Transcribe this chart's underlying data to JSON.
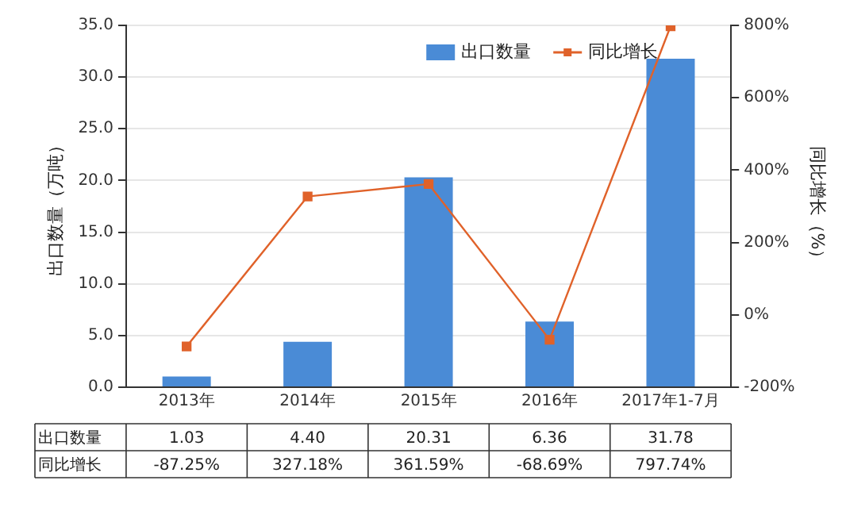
{
  "chart_data": {
    "type": "bar",
    "categories": [
      "2013年",
      "2014年",
      "2015年",
      "2016年",
      "2017年1-7月"
    ],
    "ylabel": "出口数量（万吨）",
    "y2label": "同比增长（%）",
    "series": [
      {
        "name": "出口数量",
        "color": "#4a8bd6",
        "values": [
          1.03,
          4.4,
          20.31,
          6.36,
          31.78
        ],
        "value_labels": [
          "1.03",
          "4.40",
          "20.31",
          "6.36",
          "31.78"
        ]
      },
      {
        "name": "同比增长",
        "type": "line",
        "axis": "y2",
        "color": "#e0622a",
        "marker": "square",
        "values": [
          -87.25,
          327.18,
          361.59,
          -68.69,
          797.74
        ],
        "value_labels": [
          "-87.25%",
          "327.18%",
          "361.59%",
          "-68.69%",
          "797.74%"
        ]
      }
    ],
    "ylim": [
      0,
      35
    ],
    "yticks": [
      {
        "value": 0,
        "label": "0.0"
      },
      {
        "value": 5,
        "label": "5.0"
      },
      {
        "value": 10,
        "label": "10.0"
      },
      {
        "value": 15,
        "label": "15.0"
      },
      {
        "value": 20,
        "label": "20.0"
      },
      {
        "value": 25,
        "label": "25.0"
      },
      {
        "value": 30,
        "label": "30.0"
      },
      {
        "value": 35,
        "label": "35.0"
      }
    ],
    "y2lim": [
      -200,
      800
    ],
    "y2ticks": [
      {
        "value": -200,
        "label": "-200%"
      },
      {
        "value": 0,
        "label": "0%"
      },
      {
        "value": 200,
        "label": "200%"
      },
      {
        "value": 400,
        "label": "400%"
      },
      {
        "value": 600,
        "label": "600%"
      },
      {
        "value": 800,
        "label": "800%"
      }
    ],
    "grid": "y",
    "legend": "top right"
  }
}
